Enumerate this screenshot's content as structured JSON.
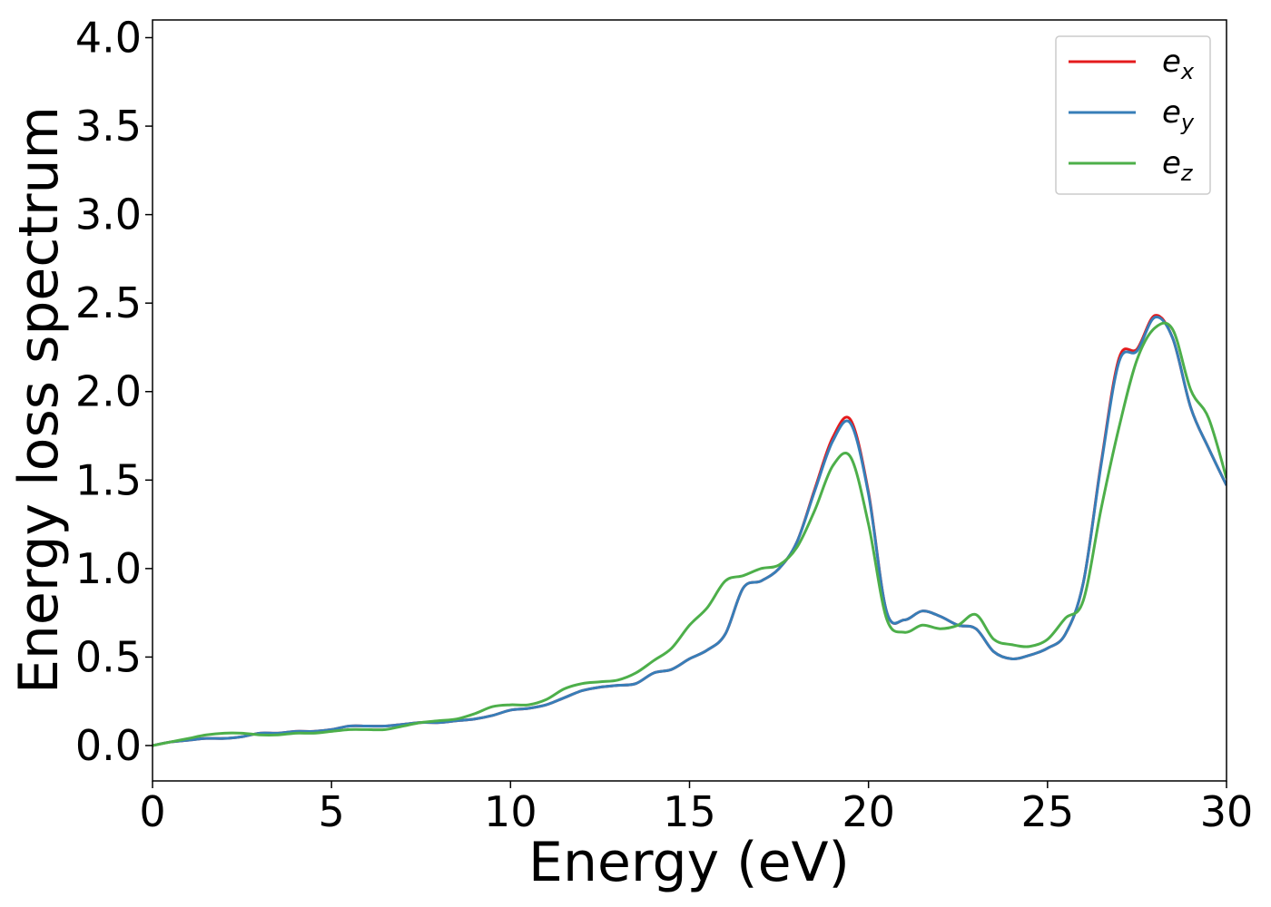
{
  "chart_data": {
    "type": "line",
    "xlabel": "Energy (eV)",
    "ylabel": "Energy loss spectrum",
    "xlim": [
      0,
      30
    ],
    "ylim": [
      -0.2,
      4.1
    ],
    "xticks": [
      0,
      5,
      10,
      15,
      20,
      25,
      30
    ],
    "xtick_labels": [
      "0",
      "5",
      "10",
      "15",
      "20",
      "25",
      "30"
    ],
    "yticks": [
      0.0,
      0.5,
      1.0,
      1.5,
      2.0,
      2.5,
      3.0,
      3.5,
      4.0
    ],
    "ytick_labels": [
      "0.0",
      "0.5",
      "1.0",
      "1.5",
      "2.0",
      "2.5",
      "3.0",
      "3.5",
      "4.0"
    ],
    "grid": false,
    "legend_position": "top-right",
    "x": [
      0,
      0.5,
      1,
      1.5,
      2,
      2.5,
      3,
      3.5,
      4,
      4.5,
      5,
      5.5,
      6,
      6.5,
      7,
      7.5,
      8,
      8.5,
      9,
      9.5,
      10,
      10.5,
      11,
      11.5,
      12,
      12.5,
      13,
      13.5,
      14,
      14.5,
      15,
      15.5,
      16,
      16.5,
      17,
      17.5,
      18,
      18.5,
      19,
      19.5,
      20,
      20.5,
      21,
      21.5,
      22,
      22.5,
      23,
      23.5,
      24,
      24.5,
      25,
      25.5,
      26,
      26.5,
      27,
      27.5,
      28,
      28.5,
      29,
      29.5,
      30
    ],
    "series": [
      {
        "name": "e",
        "subscript": "x",
        "color": "#e41a1c",
        "values": [
          0.0,
          0.02,
          0.03,
          0.04,
          0.04,
          0.05,
          0.07,
          0.07,
          0.08,
          0.08,
          0.09,
          0.11,
          0.11,
          0.11,
          0.12,
          0.13,
          0.13,
          0.14,
          0.15,
          0.17,
          0.2,
          0.21,
          0.23,
          0.27,
          0.31,
          0.33,
          0.34,
          0.35,
          0.41,
          0.43,
          0.49,
          0.54,
          0.63,
          0.89,
          0.93,
          1.0,
          1.15,
          1.45,
          1.74,
          1.84,
          1.43,
          0.76,
          0.71,
          0.76,
          0.73,
          0.68,
          0.66,
          0.53,
          0.49,
          0.51,
          0.55,
          0.63,
          0.92,
          1.6,
          2.19,
          2.24,
          2.43,
          2.3,
          1.91,
          1.68,
          1.47
        ]
      },
      {
        "name": "e",
        "subscript": "y",
        "color": "#377eb8",
        "values": [
          0.0,
          0.02,
          0.03,
          0.04,
          0.04,
          0.05,
          0.07,
          0.07,
          0.08,
          0.08,
          0.09,
          0.11,
          0.11,
          0.11,
          0.12,
          0.13,
          0.13,
          0.14,
          0.15,
          0.17,
          0.2,
          0.21,
          0.23,
          0.27,
          0.31,
          0.33,
          0.34,
          0.35,
          0.41,
          0.43,
          0.49,
          0.54,
          0.63,
          0.89,
          0.93,
          1.0,
          1.15,
          1.44,
          1.72,
          1.82,
          1.42,
          0.76,
          0.71,
          0.76,
          0.73,
          0.68,
          0.66,
          0.53,
          0.49,
          0.51,
          0.55,
          0.63,
          0.92,
          1.59,
          2.17,
          2.23,
          2.42,
          2.3,
          1.91,
          1.68,
          1.47
        ]
      },
      {
        "name": "e",
        "subscript": "z",
        "color": "#4daf4a",
        "values": [
          0.0,
          0.02,
          0.04,
          0.06,
          0.07,
          0.07,
          0.06,
          0.06,
          0.07,
          0.07,
          0.08,
          0.09,
          0.09,
          0.09,
          0.11,
          0.13,
          0.14,
          0.15,
          0.18,
          0.22,
          0.23,
          0.23,
          0.26,
          0.32,
          0.35,
          0.36,
          0.37,
          0.41,
          0.48,
          0.55,
          0.68,
          0.78,
          0.93,
          0.96,
          1.0,
          1.02,
          1.12,
          1.33,
          1.58,
          1.63,
          1.25,
          0.72,
          0.64,
          0.68,
          0.66,
          0.68,
          0.74,
          0.6,
          0.57,
          0.56,
          0.6,
          0.72,
          0.82,
          1.34,
          1.8,
          2.18,
          2.36,
          2.35,
          2.01,
          1.85,
          1.51
        ]
      }
    ]
  }
}
